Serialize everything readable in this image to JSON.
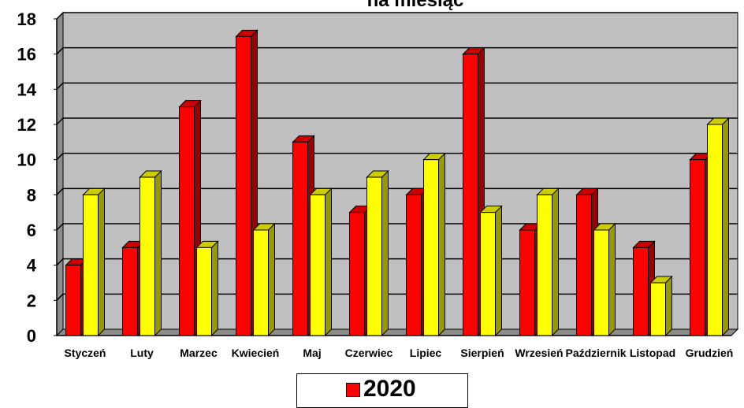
{
  "chart_data": {
    "type": "bar",
    "title": "na miesiąc",
    "categories": [
      "Styczeń",
      "Luty",
      "Marzec",
      "Kwiecień",
      "Maj",
      "Czerwiec",
      "Lipiec",
      "Sierpień",
      "Wrzesień",
      "Październik",
      "Listopad",
      "Grudzień"
    ],
    "series": [
      {
        "name": "2020",
        "color": "#ff0000",
        "values": [
          4,
          5,
          13,
          17,
          11,
          7,
          8,
          16,
          6,
          8,
          5,
          10
        ]
      },
      {
        "color": "#ffff00",
        "values": [
          8,
          9,
          5,
          6,
          8,
          9,
          10,
          7,
          8,
          6,
          3,
          12
        ]
      }
    ],
    "ylim": [
      0,
      18
    ],
    "yticks": [
      "0",
      "2",
      "4",
      "6",
      "8",
      "10",
      "12",
      "14",
      "16",
      "18"
    ],
    "grid": true,
    "legend_position": "bottom-center",
    "plot_background": "#c0c0c0"
  },
  "legend": {
    "label": "2020"
  }
}
